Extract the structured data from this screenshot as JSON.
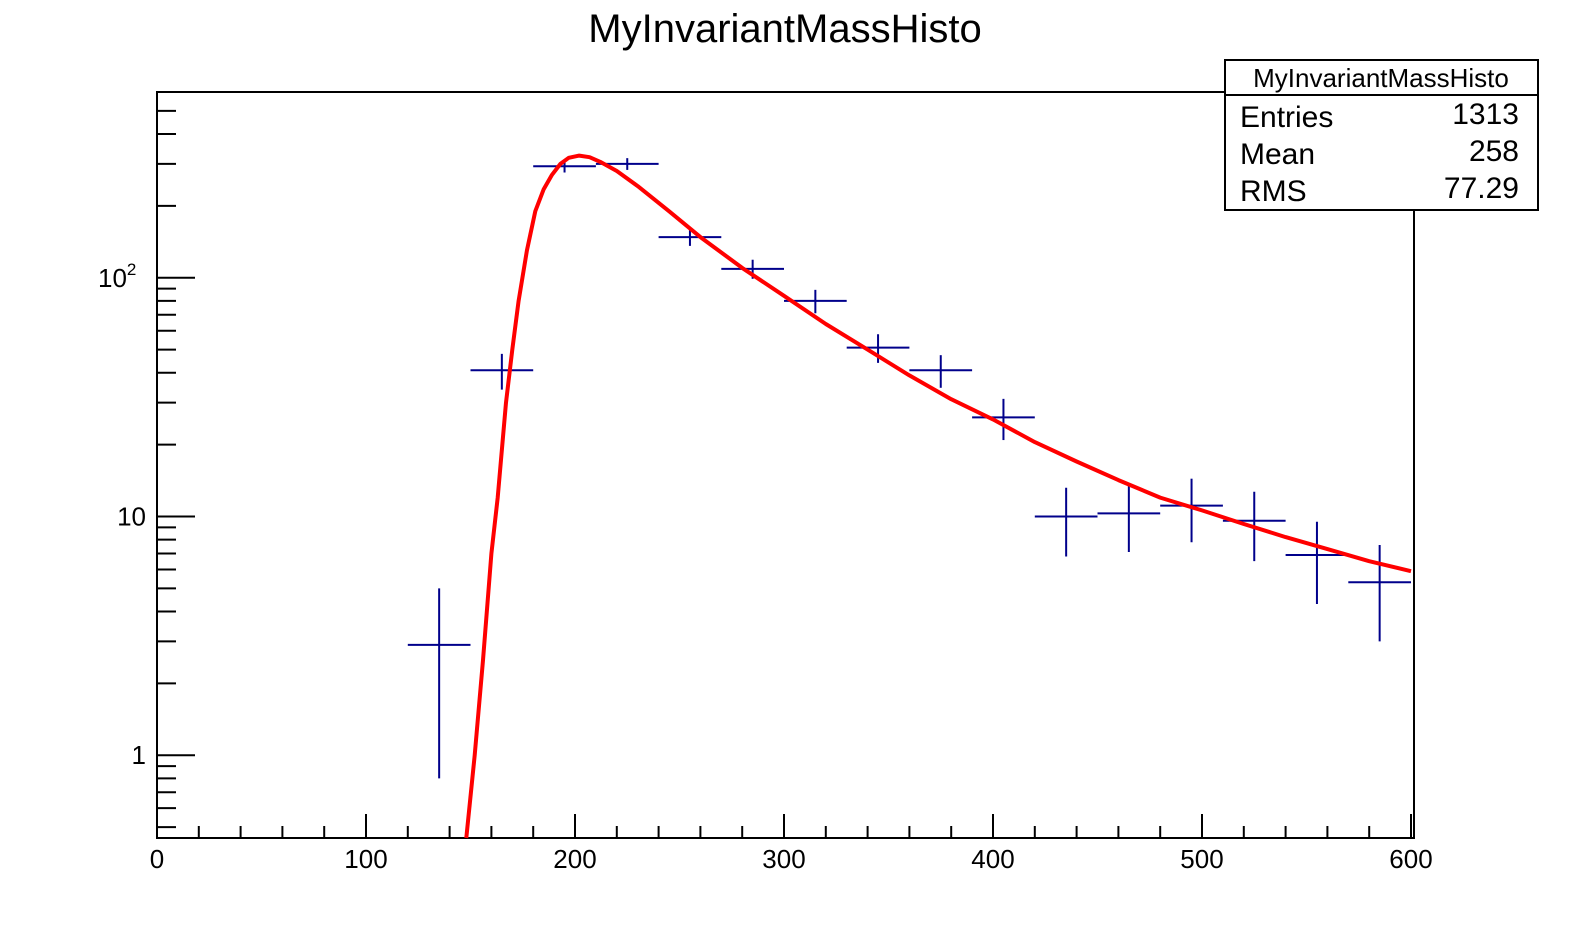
{
  "chart_data": {
    "type": "scatter",
    "title": "MyInvariantMassHisto",
    "xlabel": "",
    "ylabel": "",
    "xlim": [
      0,
      600
    ],
    "ylim": [
      0.45,
      600
    ],
    "y_scale": "log",
    "grid": false,
    "x_ticks": [
      "0",
      "100",
      "200",
      "300",
      "400",
      "500",
      "600"
    ],
    "y_ticks": [
      {
        "value": 1,
        "base": "1",
        "exp": ""
      },
      {
        "value": 10,
        "base": "10",
        "exp": ""
      },
      {
        "value": 100,
        "base": "10",
        "exp": "2"
      }
    ],
    "histogram": {
      "name": "MyInvariantMassHisto",
      "color": "#00008b",
      "bin_width": 30,
      "points": [
        {
          "x": 135,
          "y": 2.9,
          "err_low": 2.1,
          "err_high": 2.1
        },
        {
          "x": 165,
          "y": 41,
          "err_low": 7,
          "err_high": 7
        },
        {
          "x": 195,
          "y": 293,
          "err_low": 17,
          "err_high": 17
        },
        {
          "x": 225,
          "y": 300,
          "err_low": 17,
          "err_high": 17
        },
        {
          "x": 255,
          "y": 148,
          "err_low": 12,
          "err_high": 12
        },
        {
          "x": 285,
          "y": 109,
          "err_low": 10,
          "err_high": 10
        },
        {
          "x": 315,
          "y": 80,
          "err_low": 9,
          "err_high": 9
        },
        {
          "x": 345,
          "y": 51,
          "err_low": 7,
          "err_high": 7
        },
        {
          "x": 375,
          "y": 41,
          "err_low": 6.4,
          "err_high": 6.4
        },
        {
          "x": 405,
          "y": 26,
          "err_low": 5.1,
          "err_high": 5.1
        },
        {
          "x": 435,
          "y": 10,
          "err_low": 3.2,
          "err_high": 3.2
        },
        {
          "x": 465,
          "y": 10.3,
          "err_low": 3.2,
          "err_high": 3.2
        },
        {
          "x": 495,
          "y": 11.1,
          "err_low": 3.3,
          "err_high": 3.3
        },
        {
          "x": 525,
          "y": 9.6,
          "err_low": 3.1,
          "err_high": 3.1
        },
        {
          "x": 555,
          "y": 6.9,
          "err_low": 2.6,
          "err_high": 2.6
        },
        {
          "x": 585,
          "y": 5.3,
          "err_low": 2.3,
          "err_high": 2.3
        }
      ]
    },
    "fit_curve": {
      "color": "#ff0000",
      "points": [
        [
          148,
          0.45
        ],
        [
          152,
          1.0
        ],
        [
          156,
          2.5
        ],
        [
          160,
          7
        ],
        [
          163,
          12
        ],
        [
          167,
          30
        ],
        [
          170,
          50
        ],
        [
          173,
          80
        ],
        [
          177,
          130
        ],
        [
          181,
          190
        ],
        [
          185,
          235
        ],
        [
          189,
          270
        ],
        [
          193,
          300
        ],
        [
          197,
          318
        ],
        [
          202,
          325
        ],
        [
          207,
          320
        ],
        [
          212,
          306
        ],
        [
          220,
          280
        ],
        [
          230,
          242
        ],
        [
          245,
          190
        ],
        [
          260,
          148
        ],
        [
          280,
          110
        ],
        [
          300,
          84
        ],
        [
          320,
          64
        ],
        [
          340,
          50
        ],
        [
          360,
          39
        ],
        [
          380,
          31
        ],
        [
          400,
          25.5
        ],
        [
          420,
          20.5
        ],
        [
          440,
          17
        ],
        [
          460,
          14.2
        ],
        [
          480,
          12
        ],
        [
          500,
          10.6
        ],
        [
          520,
          9.3
        ],
        [
          540,
          8.2
        ],
        [
          560,
          7.3
        ],
        [
          580,
          6.5
        ],
        [
          600,
          5.9
        ]
      ]
    },
    "stats_box": {
      "title": "MyInvariantMassHisto",
      "rows": [
        {
          "label": "Entries",
          "value": "1313"
        },
        {
          "label": "Mean",
          "value": "258"
        },
        {
          "label": "RMS",
          "value": "77.29"
        }
      ]
    }
  }
}
